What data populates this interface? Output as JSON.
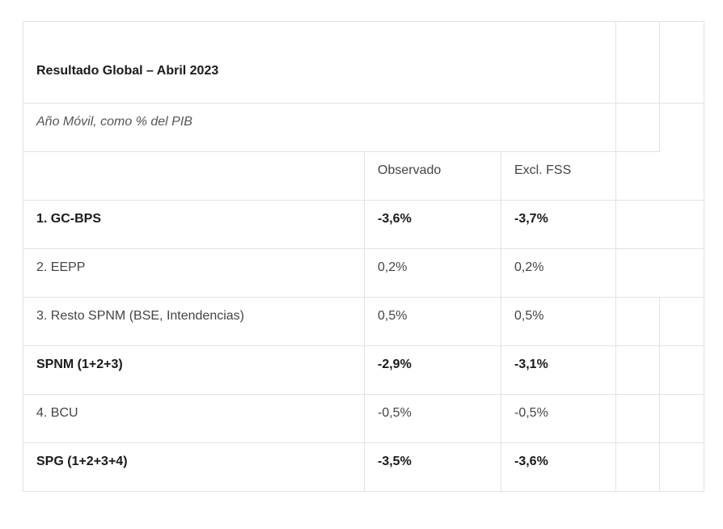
{
  "table": {
    "title": "Resultado Global – Abril 2023",
    "subtitle": "Año Móvil, como % del PIB",
    "columns": [
      "",
      "Observado",
      "Excl. FSS"
    ],
    "rows": [
      {
        "label": "1. GC-BPS",
        "observado": "-3,6%",
        "excl_fss": "-3,7%",
        "bold": true
      },
      {
        "label": "2. EEPP",
        "observado": "0,2%",
        "excl_fss": "0,2%",
        "bold": false
      },
      {
        "label": "3. Resto SPNM (BSE, Intendencias)",
        "observado": "0,5%",
        "excl_fss": "0,5%",
        "bold": false
      },
      {
        "label": "SPNM (1+2+3)",
        "observado": "-2,9%",
        "excl_fss": "-3,1%",
        "bold": true
      },
      {
        "label": "4. BCU",
        "observado": "-0,5%",
        "excl_fss": "-0,5%",
        "bold": false
      },
      {
        "label": "SPG (1+2+3+4)",
        "observado": "-3,5%",
        "excl_fss": "-3,6%",
        "bold": true
      }
    ]
  },
  "colors": {
    "border": "#e2e2e2",
    "text": "#333333",
    "bold_text": "#1a1a1a"
  }
}
